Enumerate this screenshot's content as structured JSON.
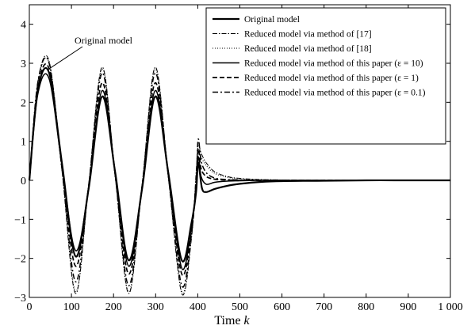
{
  "chart_data": {
    "type": "line",
    "xlabel_prefix": "Time ",
    "xlabel_var": "k",
    "ylabel": "",
    "xlim": [
      0,
      1000
    ],
    "ylim": [
      -3,
      4.5
    ],
    "xticks": [
      0,
      100,
      200,
      300,
      400,
      500,
      600,
      700,
      800,
      900,
      1000
    ],
    "xtick_labels": [
      "0",
      "100",
      "200",
      "300",
      "400",
      "500",
      "600",
      "700",
      "800",
      "900",
      "1 000"
    ],
    "yticks": [
      -3,
      -2,
      -1,
      0,
      1,
      2,
      3,
      4
    ],
    "ytick_labels": [
      "−3",
      "−2",
      "−1",
      "0",
      "1",
      "2",
      "3",
      "4"
    ],
    "grid": false,
    "legend_position": "top-right",
    "annotation": {
      "text": "Original model",
      "x": 42,
      "y": 2.85
    },
    "series": [
      {
        "name": "Original model",
        "style": "solid",
        "width": 2.2,
        "x": [
          0,
          20,
          47,
          78,
          110,
          141,
          173,
          204,
          236,
          268,
          299,
          330,
          362,
          385,
          396,
          401,
          410,
          420,
          440,
          470,
          500,
          550,
          600,
          700,
          800,
          900,
          1000
        ],
        "y": [
          0,
          2.3,
          2.75,
          0.4,
          -1.95,
          -0.2,
          2.15,
          0.2,
          -2.05,
          -0.2,
          2.15,
          0.2,
          -2.05,
          -1.1,
          -0.3,
          0.45,
          -0.2,
          -0.3,
          -0.22,
          -0.14,
          -0.09,
          -0.04,
          -0.02,
          -0.01,
          0,
          0,
          0
        ]
      },
      {
        "name": "Reduced model via method of [17]",
        "style": "dashdot-thin",
        "width": 1.0,
        "x": [
          0,
          20,
          47,
          78,
          110,
          141,
          173,
          204,
          236,
          268,
          299,
          330,
          362,
          385,
          396,
          401,
          408,
          420,
          440,
          470,
          500,
          550,
          600,
          700,
          800,
          900,
          1000
        ],
        "y": [
          0,
          2.5,
          3.05,
          0.2,
          -2.9,
          -0.1,
          2.9,
          0.1,
          -2.9,
          -0.1,
          2.9,
          0.1,
          -2.9,
          -1.5,
          0.2,
          0.9,
          0.7,
          0.45,
          0.22,
          0.1,
          0.05,
          0.02,
          0.01,
          0,
          0,
          0,
          0
        ]
      },
      {
        "name": "Reduced model via method of [18]",
        "style": "dotted",
        "width": 1.0,
        "x": [
          0,
          20,
          47,
          78,
          110,
          141,
          173,
          204,
          236,
          268,
          299,
          330,
          362,
          385,
          396,
          401,
          408,
          420,
          440,
          470,
          500,
          550,
          600,
          700,
          800,
          900,
          1000
        ],
        "y": [
          0,
          2.45,
          3.0,
          0.25,
          -2.85,
          -0.1,
          2.85,
          0.1,
          -2.85,
          -0.1,
          2.85,
          0.1,
          -2.85,
          -1.45,
          0.1,
          0.8,
          0.6,
          0.38,
          0.18,
          0.08,
          0.04,
          0.02,
          0.01,
          0,
          0,
          0,
          0
        ]
      },
      {
        "name": "Reduced model via method of this paper (ε = 10)",
        "style": "solid",
        "width": 1.5,
        "x": [
          0,
          20,
          47,
          78,
          110,
          141,
          173,
          204,
          236,
          268,
          299,
          330,
          362,
          385,
          396,
          401,
          408,
          420,
          440,
          470,
          500,
          550,
          600,
          700,
          800,
          900,
          1000
        ],
        "y": [
          0,
          2.2,
          2.6,
          0.35,
          -1.8,
          -0.2,
          2.3,
          0.2,
          -2.2,
          -0.2,
          2.3,
          0.2,
          -2.25,
          -1.2,
          -0.2,
          0.6,
          0.1,
          -0.1,
          -0.05,
          -0.02,
          -0.01,
          0,
          0,
          0,
          0,
          0,
          0
        ]
      },
      {
        "name": "Reduced model via method of this paper (ε = 1)",
        "style": "dashed",
        "width": 1.7,
        "x": [
          0,
          20,
          47,
          78,
          110,
          141,
          173,
          204,
          236,
          268,
          299,
          330,
          362,
          385,
          396,
          401,
          408,
          420,
          440,
          470,
          500,
          550,
          600,
          700,
          800,
          900,
          1000
        ],
        "y": [
          0,
          2.35,
          2.85,
          0.3,
          -2.2,
          -0.15,
          2.5,
          0.15,
          -2.4,
          -0.15,
          2.5,
          0.15,
          -2.4,
          -1.3,
          -0.1,
          0.8,
          0.3,
          0.1,
          0.03,
          0.01,
          0,
          0,
          0,
          0,
          0,
          0,
          0
        ]
      },
      {
        "name": "Reduced model via method of this paper (ε = 0.1)",
        "style": "dashdot",
        "width": 1.5,
        "x": [
          0,
          20,
          47,
          78,
          110,
          141,
          173,
          204,
          236,
          268,
          299,
          330,
          362,
          385,
          396,
          401,
          408,
          420,
          440,
          470,
          500,
          550,
          600,
          700,
          800,
          900,
          1000
        ],
        "y": [
          0,
          2.5,
          3.0,
          0.25,
          -2.6,
          -0.12,
          2.75,
          0.12,
          -2.7,
          -0.12,
          2.75,
          0.12,
          -2.7,
          -1.4,
          0.0,
          1.05,
          0.5,
          0.2,
          0.06,
          0.02,
          0.01,
          0,
          0,
          0,
          0,
          0,
          0
        ]
      }
    ]
  }
}
